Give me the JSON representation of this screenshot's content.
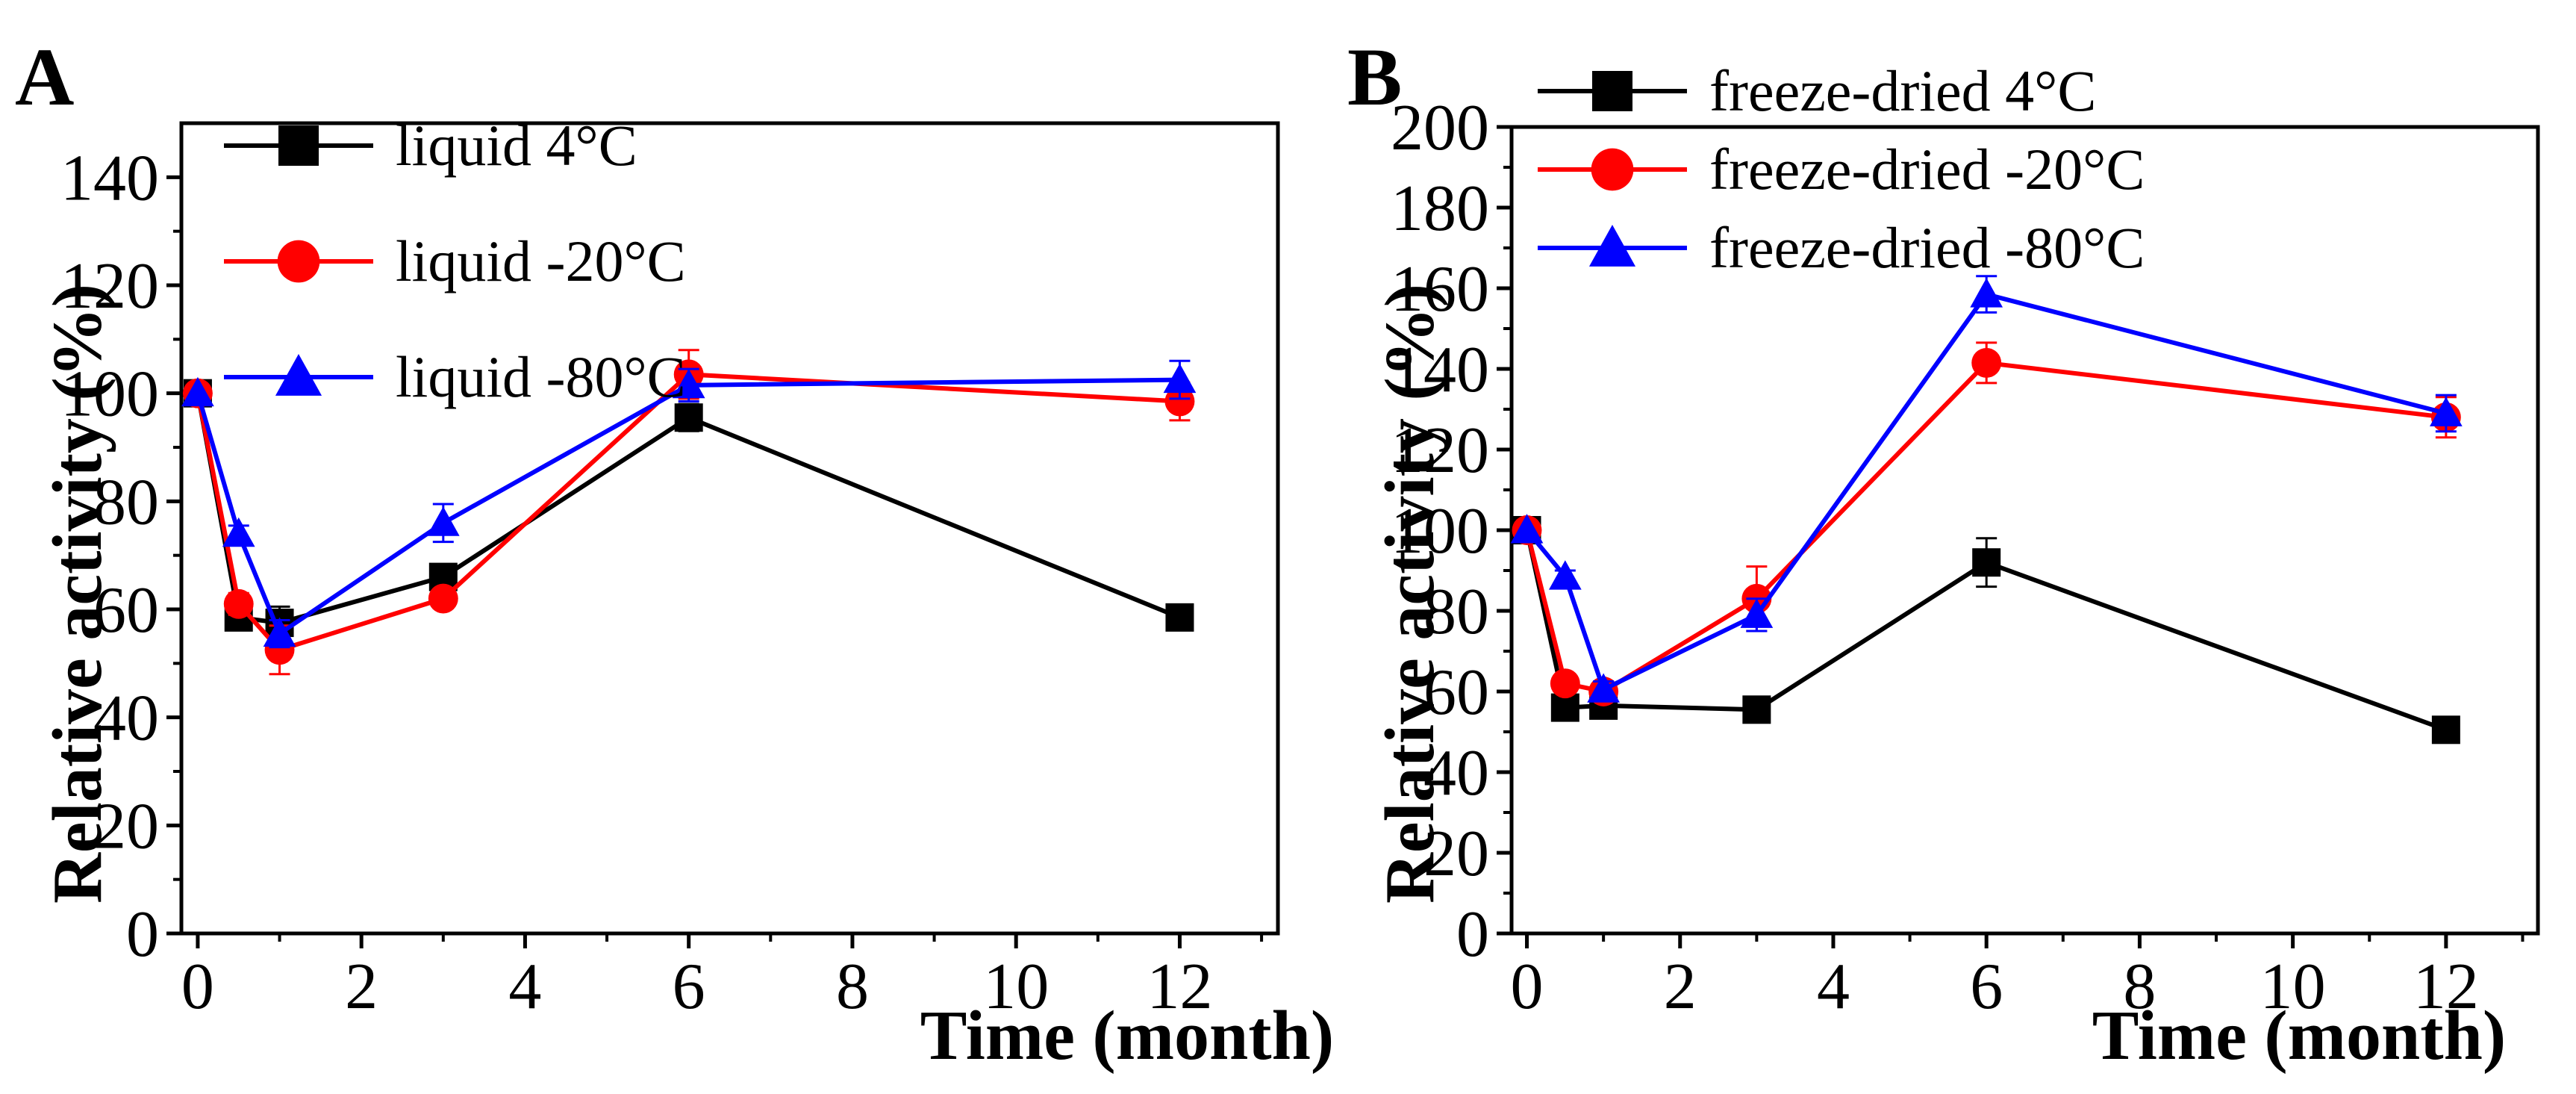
{
  "chart_data": [
    {
      "type": "line",
      "panel_label": "A",
      "title": "",
      "xlabel": "Time (month)",
      "ylabel": "Relative activity (%)",
      "xlim": [
        -0.2,
        13.2
      ],
      "ylim": [
        0,
        150
      ],
      "xticks": [
        0,
        2,
        4,
        6,
        8,
        10,
        12
      ],
      "yticks": [
        0,
        20,
        40,
        60,
        80,
        100,
        120,
        140
      ],
      "legend_position": "top-left",
      "series": [
        {
          "name": "liquid  4°C",
          "color": "#000000",
          "marker": "square",
          "x": [
            0,
            0.5,
            1,
            3,
            6,
            12
          ],
          "y": [
            100,
            58.5,
            57.5,
            66,
            95.5,
            58.5
          ],
          "err": [
            0,
            1.5,
            3,
            2,
            2.5,
            1
          ]
        },
        {
          "name": "liquid -20°C",
          "color": "#ff0000",
          "marker": "circle",
          "x": [
            0,
            0.5,
            1,
            3,
            6,
            12
          ],
          "y": [
            100,
            61,
            52.5,
            62,
            103.5,
            98.5
          ],
          "err": [
            0,
            2,
            4.5,
            1.5,
            4.5,
            3.5
          ]
        },
        {
          "name": "liquid -80°C",
          "color": "#0000ff",
          "marker": "triangle",
          "x": [
            0,
            0.5,
            1,
            3,
            6,
            12
          ],
          "y": [
            100,
            74,
            55.5,
            76,
            101.5,
            102.5
          ],
          "err": [
            0,
            1.5,
            2.5,
            3.5,
            3,
            3.5
          ]
        }
      ]
    },
    {
      "type": "line",
      "panel_label": "B",
      "title": "",
      "xlabel": "Time (month)",
      "ylabel": "Relative activity (%)",
      "xlim": [
        -0.2,
        13.2
      ],
      "ylim": [
        0,
        200
      ],
      "xticks": [
        0,
        2,
        4,
        6,
        8,
        10,
        12
      ],
      "yticks": [
        0,
        20,
        40,
        60,
        80,
        100,
        120,
        140,
        160,
        180,
        200
      ],
      "legend_position": "top-left",
      "series": [
        {
          "name": "freeze-dried 4°C",
          "color": "#000000",
          "marker": "square",
          "x": [
            0,
            0.5,
            1,
            3,
            6,
            12
          ],
          "y": [
            100,
            56,
            56.5,
            55.5,
            92,
            50.5
          ],
          "err": [
            0,
            1.5,
            2,
            2.5,
            6,
            1
          ]
        },
        {
          "name": "freeze-dried -20°C",
          "color": "#ff0000",
          "marker": "circle",
          "x": [
            0,
            0.5,
            1,
            3,
            6,
            12
          ],
          "y": [
            100,
            62,
            60,
            83,
            141.5,
            128
          ],
          "err": [
            0,
            2,
            2,
            8,
            5,
            5
          ]
        },
        {
          "name": "freeze-dried -80°C",
          "color": "#0000ff",
          "marker": "triangle",
          "x": [
            0,
            0.5,
            1,
            3,
            6,
            12
          ],
          "y": [
            100,
            88.5,
            60.5,
            79,
            158.5,
            129
          ],
          "err": [
            0,
            1.5,
            2,
            4,
            4.5,
            4.5
          ]
        }
      ]
    }
  ]
}
